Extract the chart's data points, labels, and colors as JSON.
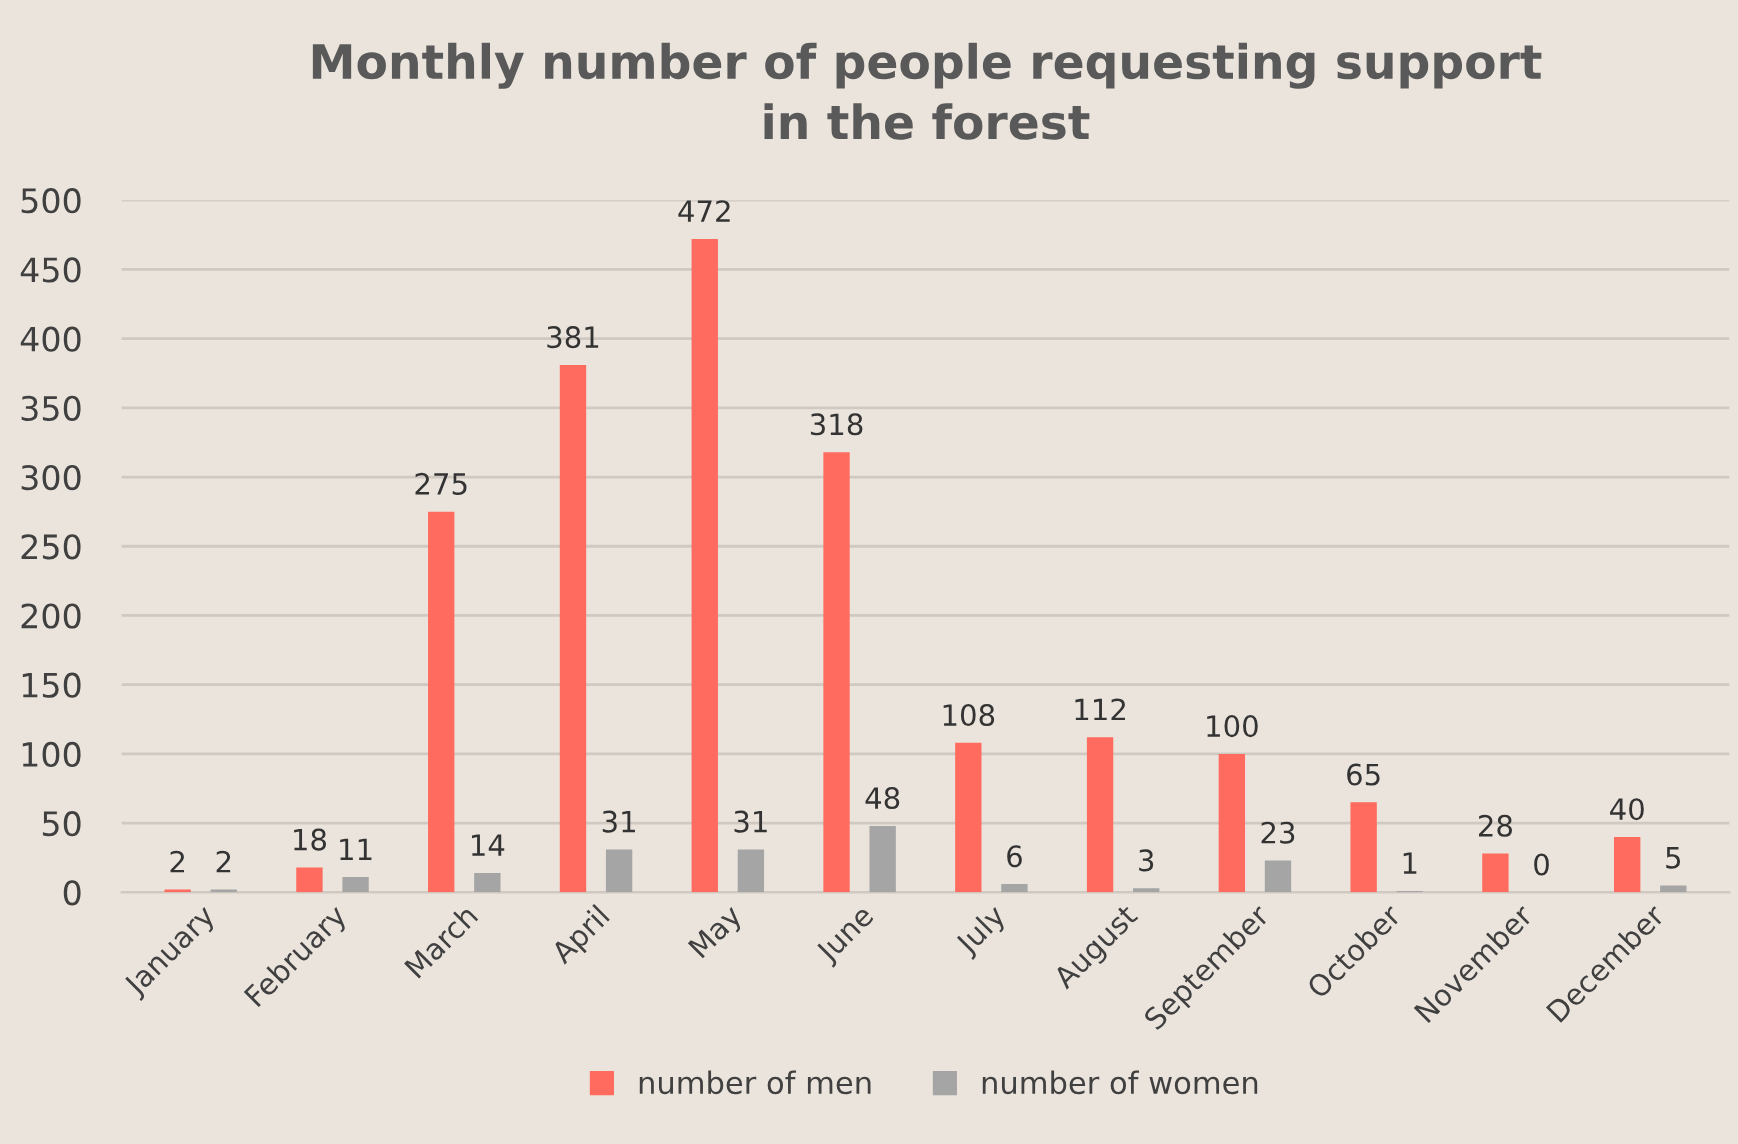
{
  "chart_data": {
    "type": "bar",
    "title": "Monthly number of people requesting support\nin the forest",
    "categories": [
      "January",
      "February",
      "March",
      "April",
      "May",
      "June",
      "July",
      "August",
      "September",
      "October",
      "November",
      "December"
    ],
    "series": [
      {
        "name": "number of men",
        "color": "#ff6b5e",
        "values": [
          2,
          18,
          275,
          381,
          472,
          318,
          108,
          112,
          100,
          65,
          28,
          40
        ]
      },
      {
        "name": "number of women",
        "color": "#a5a5a5",
        "values": [
          2,
          11,
          14,
          31,
          31,
          48,
          6,
          3,
          23,
          1,
          0,
          5
        ]
      }
    ],
    "ylim": [
      0,
      500
    ],
    "yticks": [
      0,
      50,
      100,
      150,
      200,
      250,
      300,
      350,
      400,
      450,
      500
    ],
    "grid": "y",
    "legend": "bottom",
    "data_labels": true
  }
}
